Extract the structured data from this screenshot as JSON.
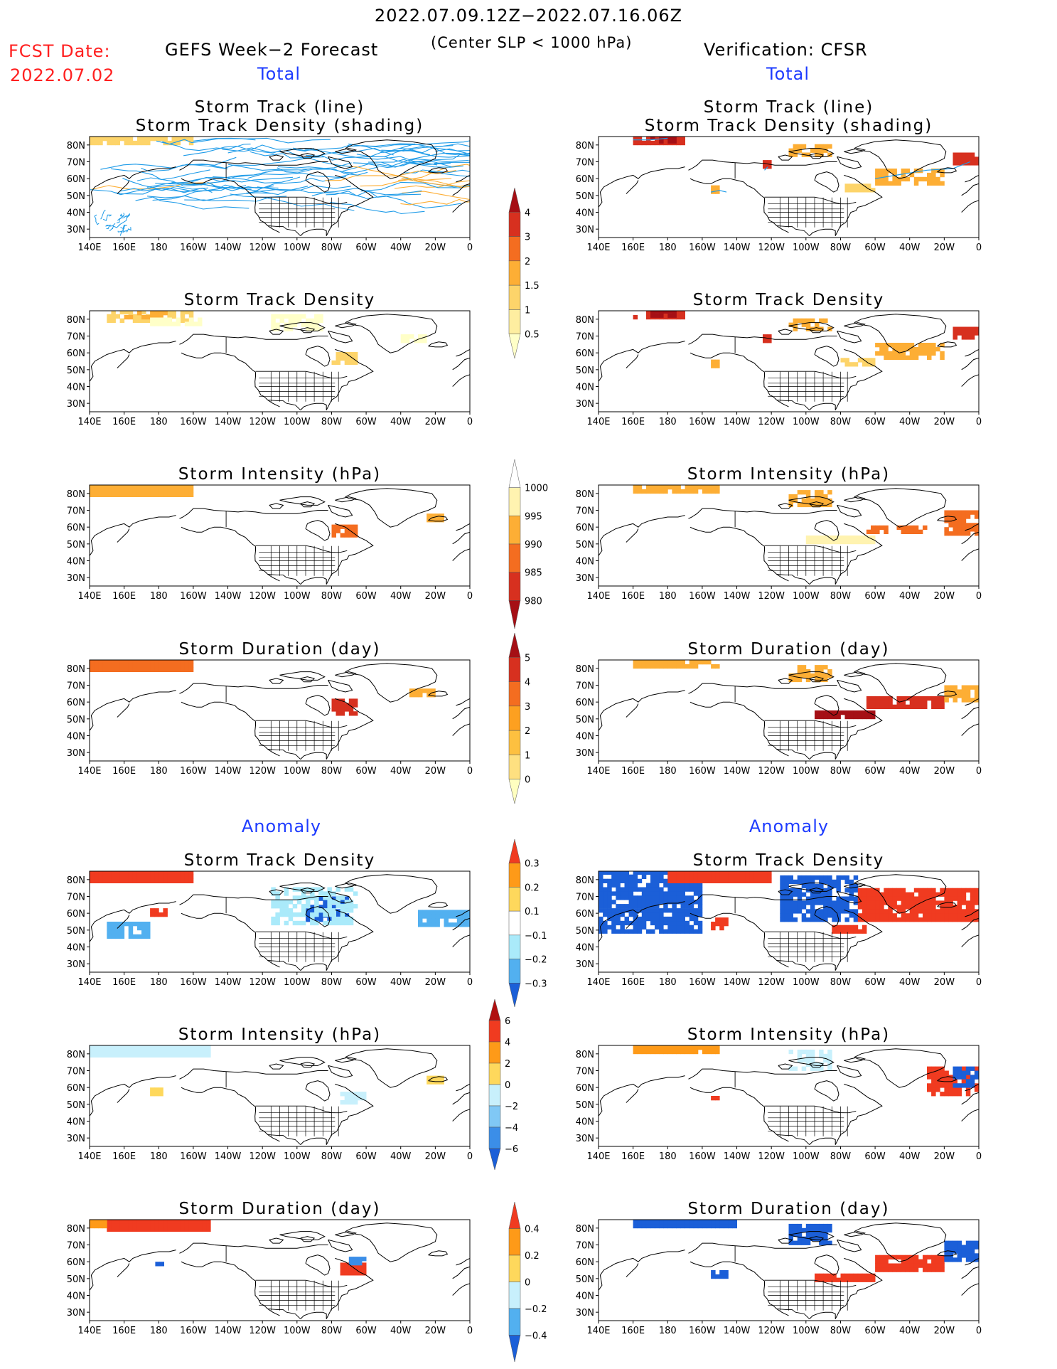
{
  "header": {
    "period": "2022.07.09.12Z−2022.07.16.06Z",
    "fcst_label": "FCST Date:",
    "fcst_date": "2022.07.02",
    "left_title": "GEFS Week−2 Forecast",
    "subtitle": "(Center SLP < 1000 hPa)",
    "right_title": "Verification: CFSR",
    "total_left": "Total",
    "total_right": "Total"
  },
  "sections": {
    "anomaly_left": "Anomaly",
    "anomaly_right": "Anomaly"
  },
  "axes": {
    "lon_labels": [
      "140E",
      "160E",
      "180",
      "160W",
      "140W",
      "120W",
      "100W",
      "80W",
      "60W",
      "40W",
      "20W",
      "0"
    ],
    "lat_labels": [
      "80N",
      "70N",
      "60N",
      "50N",
      "40N",
      "30N"
    ]
  },
  "panels": [
    {
      "id": "fc-track",
      "title_lines": [
        "Storm Track (line)",
        "Storm Track Density (shading)"
      ],
      "col": "left",
      "row": 0,
      "style": "tracks"
    },
    {
      "id": "vf-track",
      "title_lines": [
        "Storm Track (line)",
        "Storm Track Density (shading)"
      ],
      "col": "right",
      "row": 0,
      "style": "density-strong"
    },
    {
      "id": "fc-density",
      "title_lines": [
        "Storm Track Density"
      ],
      "col": "left",
      "row": 1,
      "style": "density-weak"
    },
    {
      "id": "vf-density",
      "title_lines": [
        "Storm Track Density"
      ],
      "col": "right",
      "row": 1,
      "style": "density-strong"
    },
    {
      "id": "fc-intensity",
      "title_lines": [
        "Storm Intensity (hPa)"
      ],
      "col": "left",
      "row": 2,
      "style": "intensity"
    },
    {
      "id": "vf-intensity",
      "title_lines": [
        "Storm Intensity (hPa)"
      ],
      "col": "right",
      "row": 2,
      "style": "intensity-v"
    },
    {
      "id": "fc-duration",
      "title_lines": [
        "Storm Duration (day)"
      ],
      "col": "left",
      "row": 3,
      "style": "duration"
    },
    {
      "id": "vf-duration",
      "title_lines": [
        "Storm Duration (day)"
      ],
      "col": "right",
      "row": 3,
      "style": "duration-v"
    },
    {
      "id": "fa-density",
      "title_lines": [
        "Storm Track Density"
      ],
      "col": "left",
      "row": 4,
      "style": "anom-a"
    },
    {
      "id": "va-density",
      "title_lines": [
        "Storm Track Density"
      ],
      "col": "right",
      "row": 4,
      "style": "anom-b"
    },
    {
      "id": "fa-intensity",
      "title_lines": [
        "Storm Intensity (hPa)"
      ],
      "col": "left",
      "row": 5,
      "style": "anom-c"
    },
    {
      "id": "va-intensity",
      "title_lines": [
        "Storm Intensity (hPa)"
      ],
      "col": "right",
      "row": 5,
      "style": "anom-d"
    },
    {
      "id": "fa-duration",
      "title_lines": [
        "Storm Duration (day)"
      ],
      "col": "left",
      "row": 6,
      "style": "anom-e"
    },
    {
      "id": "va-duration",
      "title_lines": [
        "Storm Duration (day)"
      ],
      "col": "right",
      "row": 6,
      "style": "anom-f"
    }
  ],
  "colorbars": [
    {
      "id": "cb-density",
      "labels": [
        "4",
        "3",
        "2",
        "1.5",
        "1",
        "0.5"
      ],
      "colors": [
        "#a50f15",
        "#d7301f",
        "#f46d20",
        "#fdae35",
        "#fdd46a",
        "#feeea0",
        "#ffffc8"
      ]
    },
    {
      "id": "cb-intensity",
      "labels": [
        "1000",
        "995",
        "990",
        "985",
        "980"
      ],
      "colors": [
        "#ffffff",
        "#fff3b0",
        "#fdae35",
        "#f46d20",
        "#d7301f",
        "#a50f15"
      ]
    },
    {
      "id": "cb-duration",
      "labels": [
        "5",
        "4",
        "3",
        "2",
        "1",
        "0"
      ],
      "colors": [
        "#a50f15",
        "#d7301f",
        "#f46d20",
        "#fda020",
        "#fdc040",
        "#fee080",
        "#ffffc0"
      ]
    },
    {
      "id": "cb-anom-density",
      "labels": [
        "0.3",
        "0.2",
        "0.1",
        "−0.1",
        "−0.2",
        "−0.3"
      ],
      "colors": [
        "#f03b20",
        "#fe9a18",
        "#fed85c",
        "#ffffff",
        "#aaeafa",
        "#52b0f0",
        "#1b5fd8"
      ]
    },
    {
      "id": "cb-anom-intensity",
      "labels": [
        "6",
        "4",
        "2",
        "0",
        "−2",
        "−4",
        "−6"
      ],
      "colors": [
        "#b01010",
        "#f03b20",
        "#fe9a18",
        "#fed85c",
        "#c8f0fc",
        "#80c8f5",
        "#3b8ee8",
        "#1b5fd8"
      ]
    },
    {
      "id": "cb-anom-duration",
      "labels": [
        "0.4",
        "0.2",
        "0",
        "−0.2",
        "−0.4"
      ],
      "colors": [
        "#f03b20",
        "#fe9a18",
        "#fed85c",
        "#c8f0fc",
        "#52b0f0",
        "#1b5fd8"
      ]
    }
  ]
}
